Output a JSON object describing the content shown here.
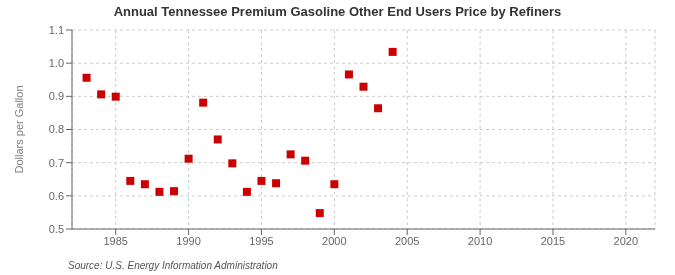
{
  "chart_data": {
    "type": "scatter",
    "title": "Annual Tennessee Premium Gasoline Other End Users Price by Refiners",
    "y_label": "Dollars per Gallon",
    "source": "Source: U.S. Energy Information Administration",
    "color": "#cc0000",
    "marker": "square",
    "grid": true,
    "x": [
      1983,
      1984,
      1985,
      1986,
      1987,
      1988,
      1989,
      1990,
      1991,
      1992,
      1993,
      1994,
      1995,
      1996,
      1997,
      1998,
      1999,
      2000,
      2001,
      2002,
      2003,
      2004
    ],
    "values": [
      0.956,
      0.906,
      0.899,
      0.645,
      0.635,
      0.612,
      0.614,
      0.712,
      0.881,
      0.77,
      0.698,
      0.612,
      0.645,
      0.638,
      0.725,
      0.706,
      0.548,
      0.635,
      0.966,
      0.929,
      0.864,
      1.034
    ],
    "xlim": [
      1982,
      2022
    ],
    "xticks": [
      1985,
      1990,
      1995,
      2000,
      2005,
      2010,
      2015,
      2020
    ],
    "ylim": [
      0.5,
      1.1
    ],
    "yticks": [
      0.5,
      0.6,
      0.7,
      0.8,
      0.9,
      {
        "value": 1.0,
        "label": "1.0"
      },
      1.1
    ]
  }
}
